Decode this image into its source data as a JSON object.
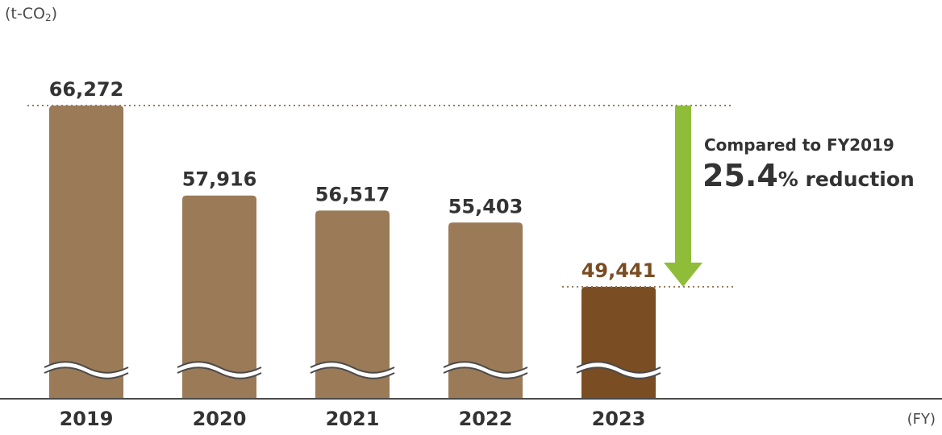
{
  "chart_data": {
    "type": "bar",
    "categories": [
      "2019",
      "2020",
      "2021",
      "2022",
      "2023"
    ],
    "values": [
      66272,
      57916,
      56517,
      55403,
      49441
    ],
    "value_labels": [
      "66,272",
      "57,916",
      "56,517",
      "55,403",
      "49,441"
    ],
    "unit_prefix": "(t-CO",
    "unit_sub": "2",
    "unit_suffix": ")",
    "xlabel": "(FY)",
    "axis_break": true,
    "highlight_index": 4,
    "colors": {
      "bar": "#9b7a58",
      "highlight": "#7a4d22",
      "highlight_label": "#7a4d22",
      "arrow": "#8fbd3a",
      "reference_line": "#9b7a58",
      "axis": "#4a4a4a"
    },
    "annotation": {
      "line1": "Compared to FY2019",
      "percent": "25.4",
      "percent_sign_text": "% reduction"
    }
  }
}
